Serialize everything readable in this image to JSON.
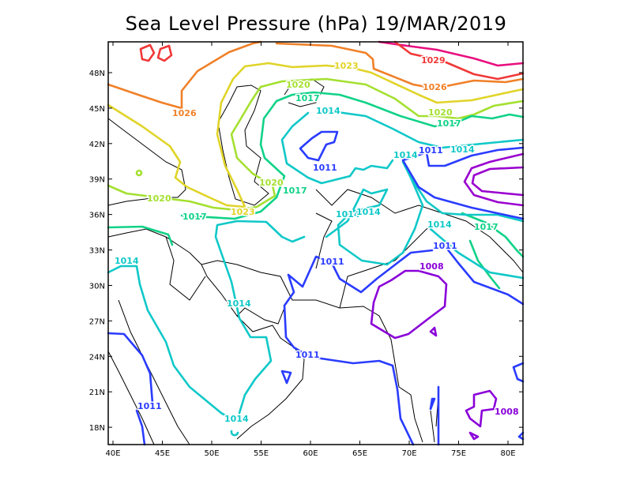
{
  "chart_data": {
    "type": "contour",
    "title": "Sea Level Pressure (hPa) 19/MAR/2019",
    "variable": "Sea Level Pressure",
    "units": "hPa",
    "date": "19/MAR/2019",
    "lon_range": [
      39.5,
      81.5
    ],
    "lat_range": [
      16.5,
      50.5
    ],
    "x_ticks": [
      "40E",
      "45E",
      "50E",
      "55E",
      "60E",
      "65E",
      "70E",
      "75E",
      "80E"
    ],
    "y_ticks": [
      "48N",
      "45N",
      "42N",
      "39N",
      "36N",
      "33N",
      "30N",
      "27N",
      "24N",
      "21N",
      "18N"
    ],
    "contour_interval": 3,
    "levels": [
      1005,
      1008,
      1011,
      1014,
      1017,
      1020,
      1023,
      1026,
      1029,
      1032
    ],
    "level_colors": {
      "1005": "#9a00d0",
      "1008": "#8a00d8",
      "1011": "#2a3cff",
      "1014": "#10c8c8",
      "1017": "#10d288",
      "1020": "#a4e030",
      "1023": "#e0d428",
      "1026": "#f08028",
      "1029": "#f03838",
      "1032": "#e81080"
    },
    "contour_labels": [
      {
        "text": "1029",
        "level": 1029
      },
      {
        "text": "1026",
        "level": 1026
      },
      {
        "text": "1026",
        "level": 1026
      },
      {
        "text": "1023",
        "level": 1023
      },
      {
        "text": "1023",
        "level": 1023
      },
      {
        "text": "1020",
        "level": 1020
      },
      {
        "text": "1020",
        "level": 1020
      },
      {
        "text": "1020",
        "level": 1020
      },
      {
        "text": "1020",
        "level": 1020
      },
      {
        "text": "1017",
        "level": 1017
      },
      {
        "text": "1017",
        "level": 1017
      },
      {
        "text": "1017",
        "level": 1017
      },
      {
        "text": "1017",
        "level": 1017
      },
      {
        "text": "1017",
        "level": 1017
      },
      {
        "text": "1014",
        "level": 1014
      },
      {
        "text": "1014",
        "level": 1014
      },
      {
        "text": "1014",
        "level": 1014
      },
      {
        "text": "1014",
        "level": 1014
      },
      {
        "text": "1014",
        "level": 1014
      },
      {
        "text": "1014",
        "level": 1014
      },
      {
        "text": "1014",
        "level": 1014
      },
      {
        "text": "1014",
        "level": 1014
      },
      {
        "text": "1014",
        "level": 1014
      },
      {
        "text": "1011",
        "level": 1011
      },
      {
        "text": "1011",
        "level": 1011
      },
      {
        "text": "1011",
        "level": 1011
      },
      {
        "text": "1011",
        "level": 1011
      },
      {
        "text": "1011",
        "level": 1011
      },
      {
        "text": "1011",
        "level": 1011
      },
      {
        "text": "1008",
        "level": 1008
      },
      {
        "text": "1008",
        "level": 1008
      }
    ],
    "features": {
      "low_centers": [
        "~43N 61E (<1011)",
        "~28N 72E (<1008)"
      ],
      "high_region": "north edge (>1029)"
    }
  }
}
